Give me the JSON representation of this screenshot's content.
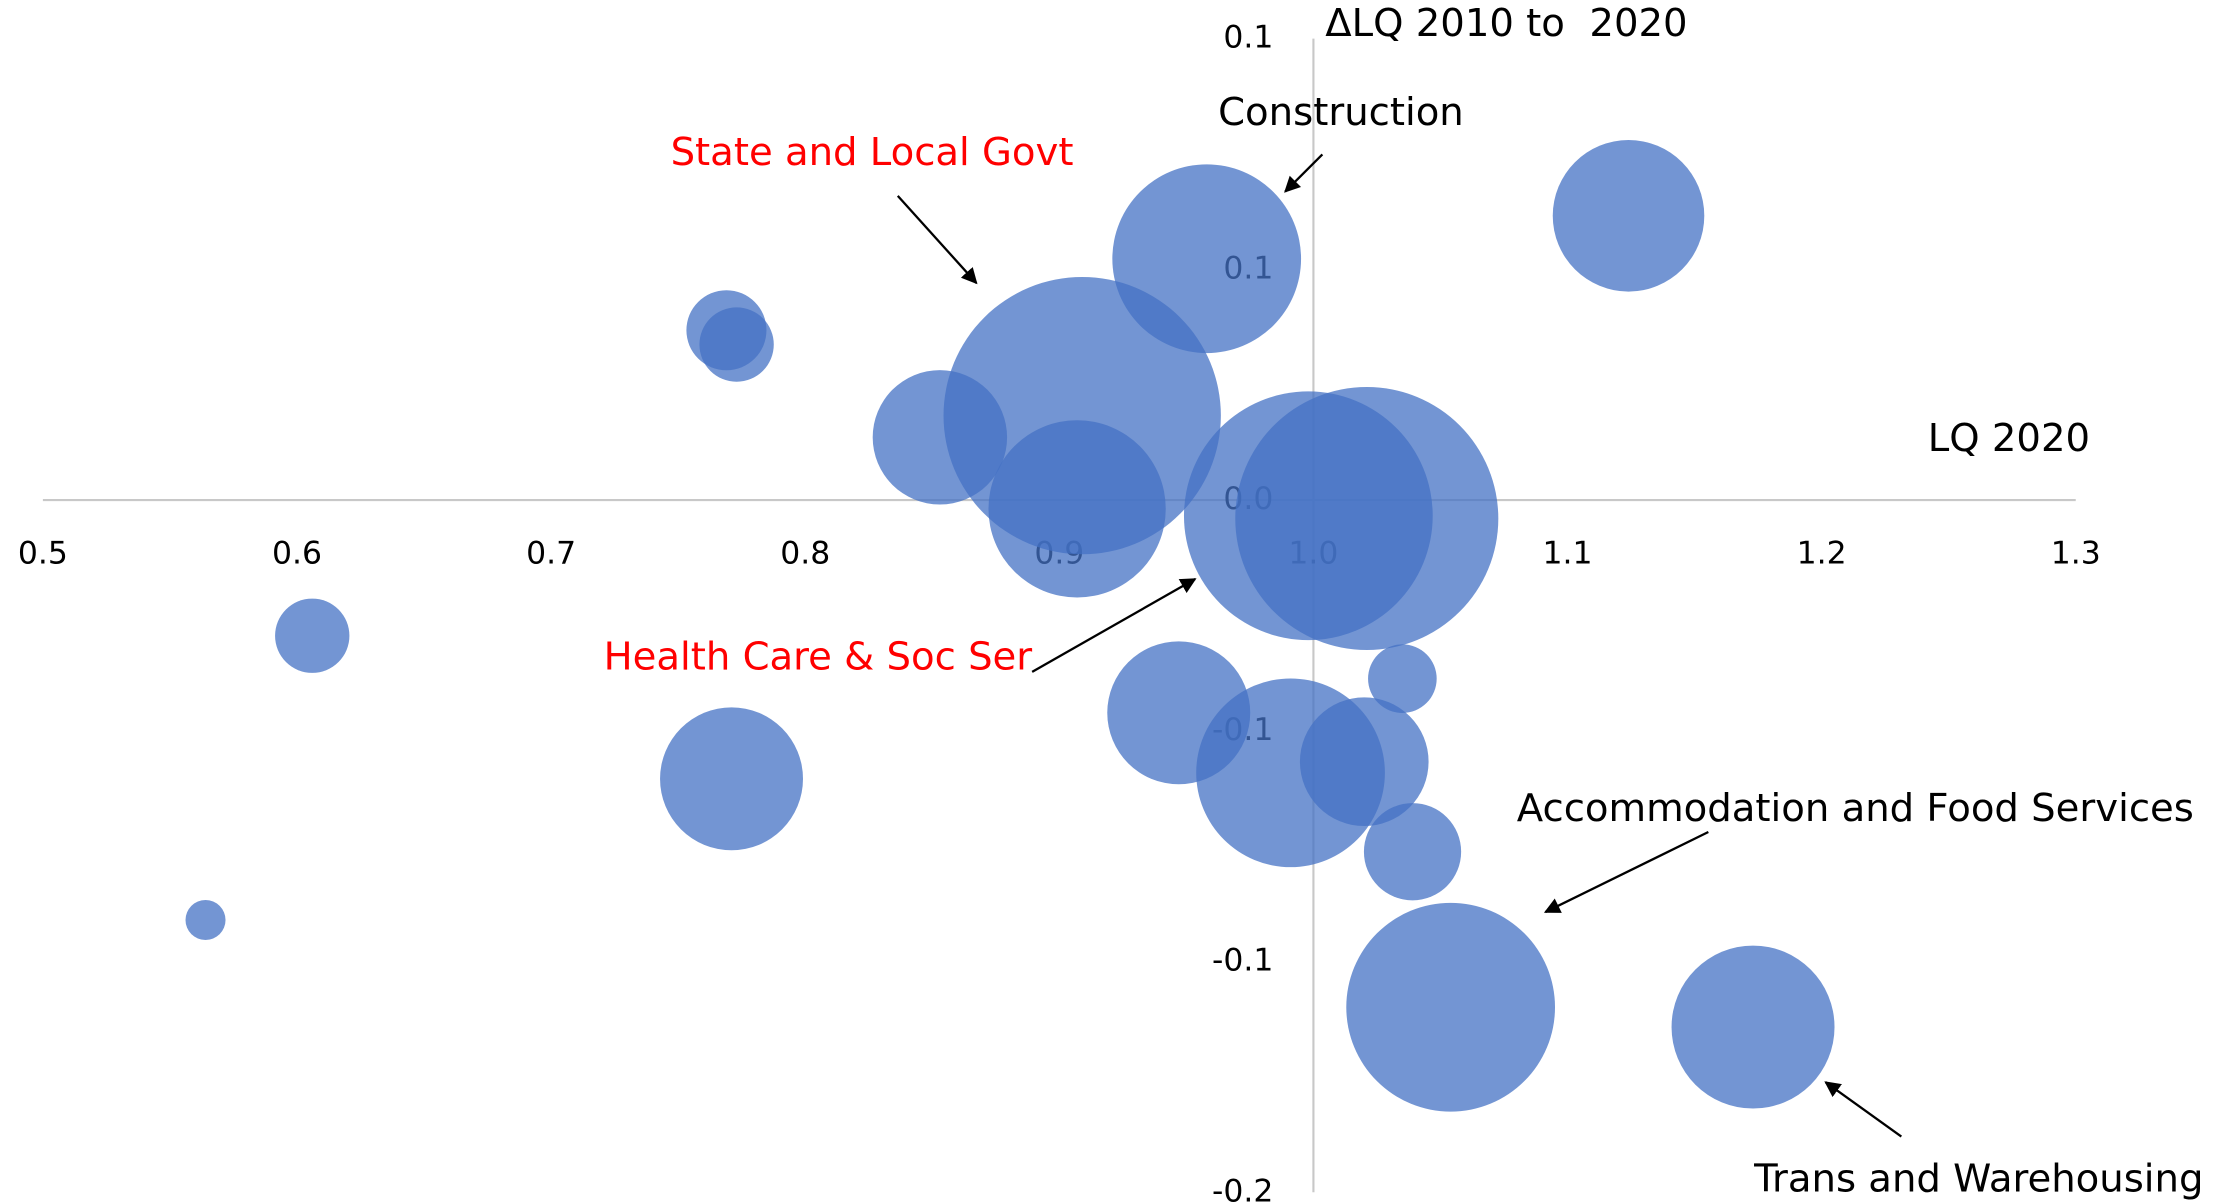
{
  "chart_data": {
    "type": "bubble",
    "x_title": "LQ 2020",
    "y_title": "ΔLQ 2010 to  2020",
    "color": "#4472c4",
    "x": [
      1.124,
      0.958,
      0.769,
      0.773,
      0.909,
      0.853,
      0.907,
      0.998,
      1.021,
      0.606,
      1.035,
      0.947,
      0.991,
      1.02,
      0.771,
      1.039,
      0.564,
      1.054,
      1.173
    ],
    "values": [
      0.0616,
      0.0523,
      0.0368,
      0.0337,
      0.0183,
      0.0136,
      -0.0019,
      -0.0034,
      -0.004,
      -0.0294,
      -0.0387,
      -0.0461,
      -0.0591,
      -0.0567,
      -0.0604,
      -0.0762,
      -0.091,
      -0.1099,
      -0.1142
    ],
    "sizes": [
      53,
      66,
      28,
      26,
      97,
      47,
      62,
      87,
      92,
      26,
      24,
      50,
      66,
      45,
      50,
      34,
      14,
      73,
      57
    ],
    "xlim": [
      0.5,
      1.3
    ],
    "ylim": [
      -0.15,
      0.1
    ],
    "xticks": [
      0.5,
      0.6,
      0.7,
      0.8,
      0.9,
      {
        "value": 1,
        "label": "1.0"
      },
      1.1,
      1.2,
      1.3
    ],
    "yticks": [
      0.1,
      {
        "value": 0.05,
        "label": "0.1"
      },
      {
        "value": 0,
        "label": "0.0"
      },
      {
        "value": -0.05,
        "label": "-0.1"
      },
      -0.1,
      {
        "value": -0.15,
        "label": "-0.2"
      }
    ],
    "annotations": [
      {
        "text": "Construction",
        "color": "#000000"
      },
      {
        "text": "State and Local Govt",
        "color": "#ff0000"
      },
      {
        "text": "Health Care & Soc Ser",
        "color": "#ff0000"
      },
      {
        "text": "Accommodation and Food Services",
        "color": "#000000"
      },
      {
        "text": "Trans and Warehousing",
        "color": "#000000"
      }
    ]
  }
}
